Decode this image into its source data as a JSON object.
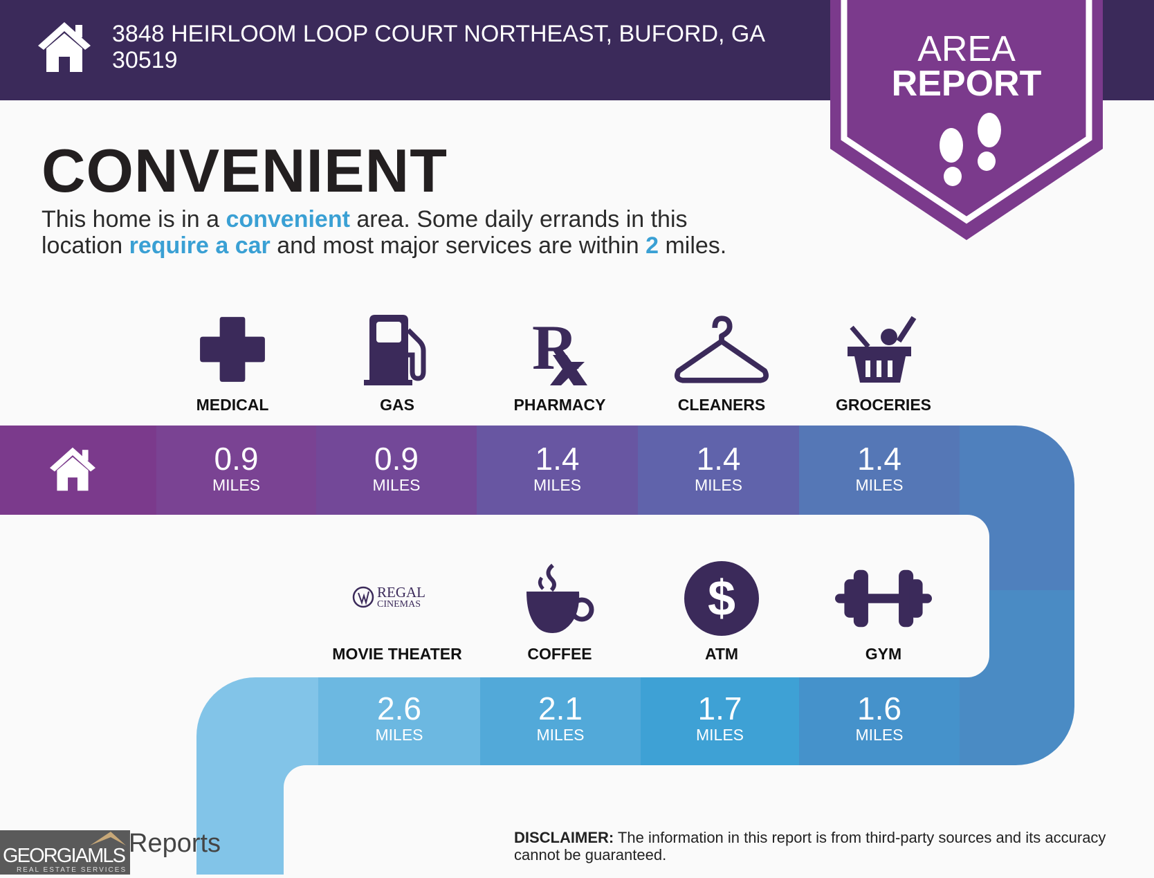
{
  "header": {
    "address_line1": "3848 HEIRLOOM LOOP COURT NORTHEAST, BUFORD, GA",
    "address_line2": "30519",
    "icon": "home-icon",
    "badge_line1": "AREA",
    "badge_line2": "REPORT",
    "badge_icon": "footprints-icon"
  },
  "main": {
    "title": "CONVENIENT",
    "para": {
      "t1": "This home is in a ",
      "h1": "convenient",
      "t2": " area. Some daily errands in this",
      "t3": "location ",
      "h2": "require a car",
      "t4": " and most major services are within ",
      "h3": "2",
      "t5": " miles."
    }
  },
  "amenities_row1": [
    {
      "label": "MEDICAL",
      "value": "0.9",
      "unit": "MILES",
      "icon": "medical-cross-icon"
    },
    {
      "label": "GAS",
      "value": "0.9",
      "unit": "MILES",
      "icon": "gas-pump-icon"
    },
    {
      "label": "PHARMACY",
      "value": "1.4",
      "unit": "MILES",
      "icon": "rx-icon"
    },
    {
      "label": "CLEANERS",
      "value": "1.4",
      "unit": "MILES",
      "icon": "hanger-icon"
    },
    {
      "label": "GROCERIES",
      "value": "1.4",
      "unit": "MILES",
      "icon": "grocery-basket-icon"
    }
  ],
  "amenities_row2": [
    {
      "label": "MOVIE THEATER",
      "value": "2.6",
      "unit": "MILES",
      "icon": "regal-cinemas-logo",
      "logo_text1": "REGAL",
      "logo_text2": "CINEMAS"
    },
    {
      "label": "COFFEE",
      "value": "2.1",
      "unit": "MILES",
      "icon": "coffee-cup-icon"
    },
    {
      "label": "ATM",
      "value": "1.7",
      "unit": "MILES",
      "icon": "dollar-icon"
    },
    {
      "label": "GYM",
      "value": "1.6",
      "unit": "MILES",
      "icon": "dumbbell-icon"
    }
  ],
  "footer": {
    "disclaimer_label": "DISCLAIMER:",
    "disclaimer_text": " The information in this report is from third-party sources and its accuracy cannot be guaranteed.",
    "reports": "Reports",
    "logo_text": "GEORGIAMLS",
    "logo_sub": "REAL ESTATE SERVICES"
  },
  "colors": {
    "header": "#3b2a5a",
    "badge": "#7b3a8c",
    "accent": "#3aa0d4",
    "icon": "#3b2a5a"
  }
}
